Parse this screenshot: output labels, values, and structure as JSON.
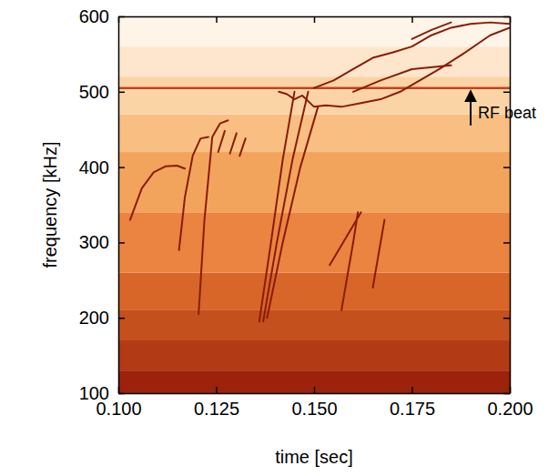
{
  "chart_data": {
    "type": "spectrogram",
    "x_label": "time [sec]",
    "y_label": "frequency [kHz]",
    "xlim": [
      0.1,
      0.2
    ],
    "ylim": [
      100,
      600
    ],
    "xticks": [
      {
        "value": 0.1,
        "label": "0.100"
      },
      {
        "value": 0.125,
        "label": "0.125"
      },
      {
        "value": 0.15,
        "label": "0.150"
      },
      {
        "value": 0.175,
        "label": "0.175"
      },
      {
        "value": 0.2,
        "label": "0.200"
      }
    ],
    "yticks": [
      100,
      200,
      300,
      400,
      500,
      600
    ],
    "background": {
      "edges": [
        100,
        130,
        170,
        210,
        260,
        340,
        420,
        470,
        520,
        560,
        600
      ],
      "colors": [
        "#9c220c",
        "#b23a14",
        "#c4501d",
        "#d86628",
        "#ea8440",
        "#f3a45c",
        "#f8be82",
        "#fbd4a6",
        "#fde6cc",
        "#fff4e8"
      ]
    },
    "series": [
      {
        "color": "#c4421c",
        "x": [
          0.1,
          0.2
        ],
        "values": [
          505,
          505
        ]
      },
      {
        "color": "#8a1c08",
        "x": [
          0.103,
          0.106,
          0.109,
          0.112,
          0.115,
          0.117
        ],
        "values": [
          330,
          372,
          393,
          401,
          402,
          398
        ]
      },
      {
        "color": "#8a1c08",
        "x": [
          0.1155,
          0.117,
          0.119,
          0.121,
          0.123
        ],
        "values": [
          290,
          360,
          415,
          438,
          440
        ]
      },
      {
        "color": "#8a1c08",
        "x": [
          0.1205,
          0.122,
          0.124,
          0.126,
          0.128
        ],
        "values": [
          205,
          330,
          440,
          458,
          462
        ]
      },
      {
        "color": "#8a1c08",
        "x": [
          0.1255,
          0.1272
        ],
        "values": [
          420,
          448
        ]
      },
      {
        "color": "#8a1c08",
        "x": [
          0.1285,
          0.1302
        ],
        "values": [
          418,
          445
        ]
      },
      {
        "color": "#8a1c08",
        "x": [
          0.131,
          0.1325
        ],
        "values": [
          415,
          438
        ]
      },
      {
        "color": "#8a1c08",
        "x": [
          0.136,
          0.139,
          0.142,
          0.145
        ],
        "values": [
          195,
          300,
          410,
          500
        ]
      },
      {
        "color": "#8a1c08",
        "x": [
          0.137,
          0.1405,
          0.1445,
          0.1485
        ],
        "values": [
          195,
          300,
          410,
          500
        ]
      },
      {
        "color": "#8a1c08",
        "x": [
          0.138,
          0.142,
          0.1465,
          0.151
        ],
        "values": [
          200,
          300,
          400,
          480
        ]
      },
      {
        "color": "#8a1c08",
        "x": [
          0.141,
          0.143,
          0.145,
          0.147,
          0.15,
          0.153,
          0.157,
          0.162,
          0.167,
          0.172,
          0.177,
          0.182,
          0.188,
          0.195,
          0.2
        ],
        "values": [
          500,
          497,
          490,
          495,
          480,
          482,
          480,
          485,
          490,
          500,
          515,
          530,
          550,
          575,
          585
        ]
      },
      {
        "color": "#8a1c08",
        "x": [
          0.15,
          0.155,
          0.16,
          0.165,
          0.17,
          0.175,
          0.18,
          0.185,
          0.19,
          0.195,
          0.2
        ],
        "values": [
          505,
          515,
          530,
          545,
          552,
          560,
          575,
          585,
          590,
          592,
          590
        ]
      },
      {
        "color": "#8a1c08",
        "x": [
          0.16,
          0.167,
          0.175,
          0.185
        ],
        "values": [
          500,
          515,
          530,
          535
        ]
      },
      {
        "color": "#8a1c08",
        "x": [
          0.175,
          0.18,
          0.185
        ],
        "values": [
          570,
          582,
          592
        ]
      },
      {
        "color": "#8a1c08",
        "x": [
          0.154,
          0.158,
          0.162
        ],
        "values": [
          270,
          305,
          340
        ]
      },
      {
        "color": "#8a1c08",
        "x": [
          0.157,
          0.1585,
          0.16
        ],
        "values": [
          210,
          255,
          300
        ]
      },
      {
        "color": "#8a1c08",
        "x": [
          0.165,
          0.1665,
          0.168
        ],
        "values": [
          240,
          285,
          330
        ]
      },
      {
        "color": "#8a1c08",
        "x": [
          0.16,
          0.1612
        ],
        "values": [
          300,
          340
        ]
      }
    ],
    "annotations": [
      {
        "text": "RF beat",
        "x": 0.19,
        "y": 470,
        "arrow_to": 505
      }
    ]
  }
}
